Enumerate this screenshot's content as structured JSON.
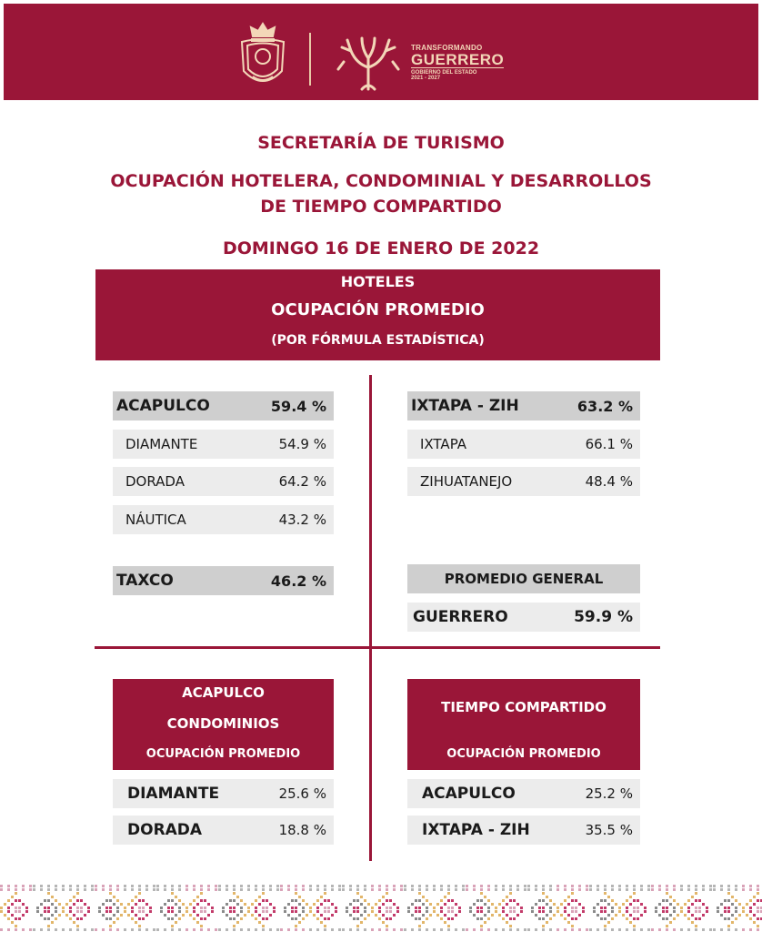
{
  "header": {
    "brand_line1": "TRANSFORMANDO",
    "brand_line2": "GUERRERO",
    "brand_line3": "GOBIERNO DEL ESTADO",
    "brand_line4": "2021 - 2027",
    "colors": {
      "primary": "#9a1638",
      "accent": "#f3d7b8"
    }
  },
  "titles": {
    "secretaria": "SECRETARÍA DE TURISMO",
    "ocupacion_line1": "OCUPACIÓN HOTELERA, CONDOMINIAL Y DESARROLLOS",
    "ocupacion_line2": "DE TIEMPO COMPARTIDO",
    "fecha": "DOMINGO 16 DE ENERO DE 2022"
  },
  "hoteles_box": {
    "line1": "HOTELES",
    "line2": "OCUPACIÓN PROMEDIO",
    "line3": "(POR FÓRMULA ESTADÍSTICA)"
  },
  "acapulco": {
    "label": "ACAPULCO",
    "value": "59.4 %",
    "zones": [
      {
        "label": "DIAMANTE",
        "value": "54.9 %"
      },
      {
        "label": "DORADA",
        "value": "64.2 %"
      },
      {
        "label": "NÁUTICA",
        "value": "43.2 %"
      }
    ]
  },
  "ixtapa": {
    "label": "IXTAPA - ZIH",
    "value": "63.2 %",
    "zones": [
      {
        "label": "IXTAPA",
        "value": "66.1 %"
      },
      {
        "label": "ZIHUATANEJO",
        "value": "48.4 %"
      }
    ]
  },
  "taxco": {
    "label": "TAXCO",
    "value": "46.2 %"
  },
  "promedio": {
    "header": "PROMEDIO GENERAL",
    "label": "GUERRERO",
    "value": "59.9 %"
  },
  "condominios": {
    "line1": "ACAPULCO",
    "line2": "CONDOMINIOS",
    "line3": "OCUPACIÓN PROMEDIO",
    "rows": [
      {
        "label": "DIAMANTE",
        "value": "25.6 %"
      },
      {
        "label": "DORADA",
        "value": "18.8 %"
      }
    ]
  },
  "tiempo_compartido": {
    "line1": "TIEMPO COMPARTIDO",
    "line2": "OCUPACIÓN PROMEDIO",
    "rows": [
      {
        "label": "ACAPULCO",
        "value": "25.2 %"
      },
      {
        "label": "IXTAPA - ZIH",
        "value": "35.5 %"
      }
    ]
  }
}
